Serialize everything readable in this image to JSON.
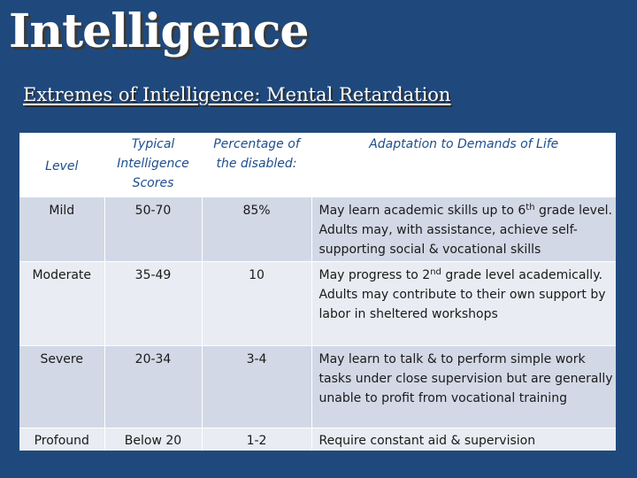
{
  "slide": {
    "title": "Intelligence",
    "subtitle": "Extremes of Intelligence: Mental Retardation"
  },
  "table": {
    "headers": [
      "Level",
      "Typical Intelligence Scores",
      "Percentage of the disabled:",
      "Adaptation to Demands of Life"
    ],
    "rows": [
      {
        "level": "Mild",
        "scores": "50-70",
        "percentage": "85%",
        "adaptation_pre": "May learn academic skills up to 6",
        "adaptation_sup": "th",
        "adaptation_post": " grade level. Adults may, with assistance, achieve self-supporting social & vocational skills"
      },
      {
        "level": "Moderate",
        "scores": "35-49",
        "percentage": "10",
        "adaptation_pre": "May progress to 2",
        "adaptation_sup": "nd",
        "adaptation_post": " grade level academically. Adults may contribute to their own support by labor in sheltered workshops"
      },
      {
        "level": "Severe",
        "scores": "20-34",
        "percentage": "3-4",
        "adaptation_pre": "May learn to talk & to perform simple work tasks under close supervision but are generally unable to profit from vocational training",
        "adaptation_sup": "",
        "adaptation_post": ""
      },
      {
        "level": "Profound",
        "scores": "Below 20",
        "percentage": "1-2",
        "adaptation_pre": "Require constant aid & supervision",
        "adaptation_sup": "",
        "adaptation_post": ""
      }
    ]
  }
}
